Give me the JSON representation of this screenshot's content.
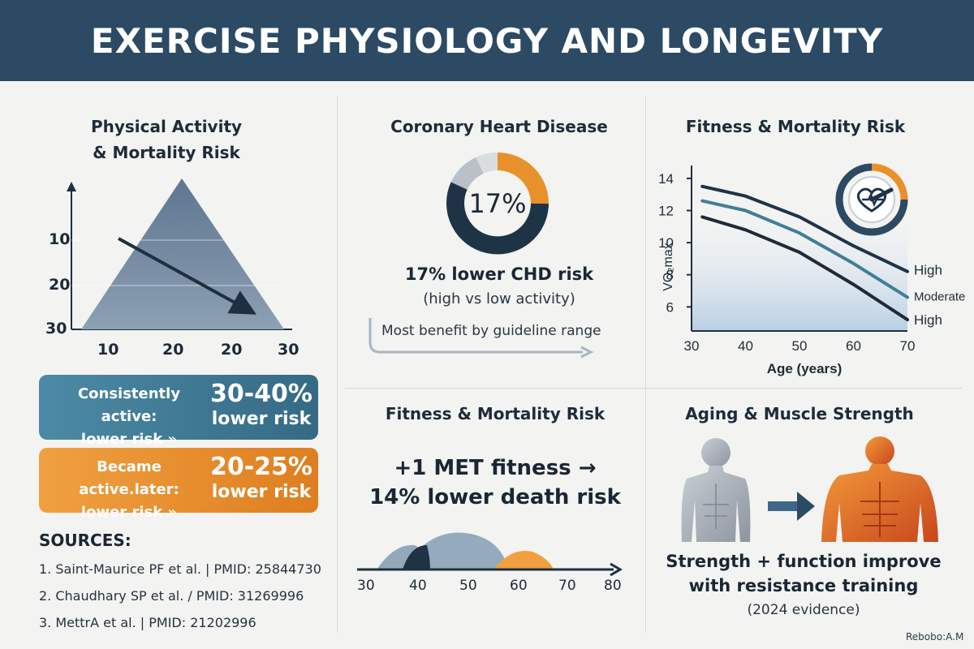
{
  "title": "EXERCISE PHYSIOLOGY AND LONGEVITY",
  "colors": {
    "header": "#2c4a63",
    "accent_orange": "#e8902a",
    "teal": "#3f7e99",
    "navy": "#1f3347"
  },
  "panel1": {
    "title_line1": "Physical Activity",
    "title_line2": "& Mortality Risk",
    "y_ticks": [
      "10",
      "20",
      "30"
    ],
    "x_ticks": [
      "10",
      "20",
      "20",
      "30"
    ],
    "box1": {
      "label_line1": "Consistently active:",
      "label_line2": "lower risk »",
      "value": "30-40%",
      "value_sub": "lower risk"
    },
    "box2": {
      "label_line1": "Became active.later:",
      "label_line2": "lower risk »",
      "value": "20-25%",
      "value_sub": "lower risk"
    },
    "sources_heading": "SOURCES:",
    "sources": [
      "1. Saint-Maurice PF et al. | PMID: 25844730",
      "2. Chaudhary SP et al. / PMID: 31269996",
      "3. MettrA et al. | PMID: 21202996"
    ]
  },
  "panel2": {
    "title": "Coronary Heart Disease",
    "center_value": "17%",
    "headline": "17% lower CHD risk",
    "sub": "(high vs low activity)",
    "note": "Most benefit by guideline range"
  },
  "panel3": {
    "title": "Fitness & Mortality Risk",
    "y_label": "VO₂max",
    "x_label": "Age (years)",
    "y_ticks": [
      "14",
      "12",
      "10",
      "8",
      "6"
    ],
    "x_ticks": [
      "30",
      "40",
      "50",
      "60",
      "70"
    ],
    "series_labels": [
      "High",
      "Moderate",
      "High"
    ]
  },
  "panel4": {
    "title": "Fitness & Mortality Risk",
    "line1": "+1 MET fitness →",
    "line2": "14% lower death risk",
    "x_ticks": [
      "30",
      "40",
      "50",
      "60",
      "70",
      "80"
    ]
  },
  "panel5": {
    "title": "Aging & Muscle Strength",
    "line1": "Strength + function improve",
    "line2": "with resistance training",
    "note": "(2024 evidence)"
  },
  "watermark": "Rebobo:A.M",
  "chart_data": {
    "type": "line",
    "title": "Fitness & Mortality Risk",
    "xlabel": "Age (years)",
    "ylabel": "VO₂max",
    "x": [
      32,
      40,
      50,
      60,
      70
    ],
    "xlim": [
      30,
      70
    ],
    "ylim": [
      4.5,
      14.5
    ],
    "series": [
      {
        "name": "High",
        "color": "#1f3347",
        "values": [
          13.5,
          12.9,
          11.6,
          9.8,
          8.2
        ]
      },
      {
        "name": "Moderate",
        "color": "#3f7e99",
        "values": [
          12.6,
          12.0,
          10.6,
          8.7,
          6.6
        ]
      },
      {
        "name": "High",
        "color": "#1f2a38",
        "values": [
          11.6,
          10.8,
          9.4,
          7.4,
          5.2
        ]
      }
    ]
  }
}
